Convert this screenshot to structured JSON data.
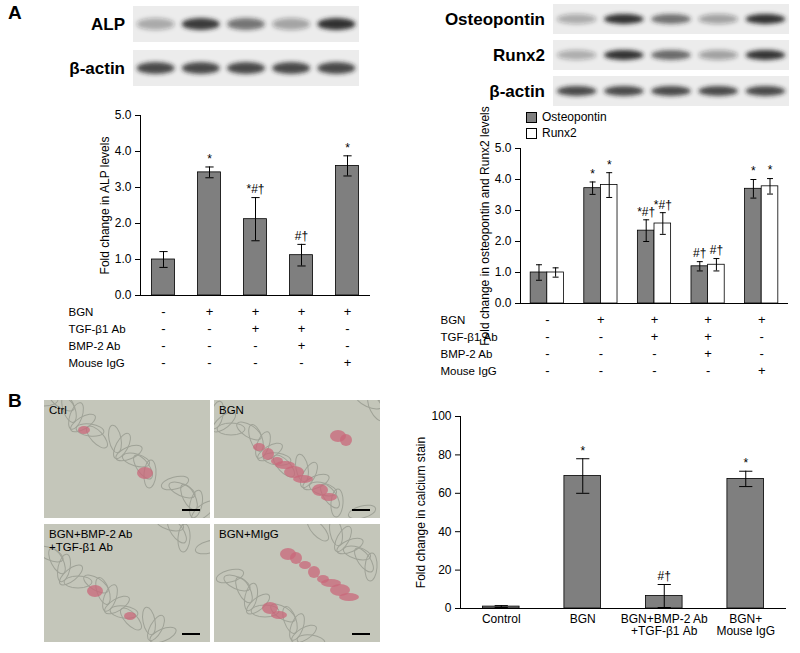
{
  "panel_labels": [
    "A",
    "B"
  ],
  "blots": [
    {
      "labels": [
        "ALP",
        "β-actin"
      ]
    },
    {
      "labels": [
        "Osteopontin",
        "Runx2",
        "β-actin"
      ]
    }
  ],
  "micrographs": {
    "labels": [
      "Ctrl",
      "BGN",
      "BGN+BMP-2 Ab\n+TGF-β1 Ab",
      "BGN+MIgG"
    ]
  },
  "chart_data": [
    {
      "type": "bar",
      "categories": [
        null,
        null,
        null,
        null,
        null
      ],
      "values": [
        1,
        3.42,
        2.12,
        1.12,
        3.6
      ],
      "errors": [
        0.22,
        0.15,
        0.6,
        0.3,
        0.28
      ],
      "annotations": [
        null,
        "*",
        "*#†",
        "#†",
        "*"
      ],
      "color": "#7f7f7f",
      "ylabel": "Fold change in ALP levels",
      "ylim": [
        0,
        5
      ],
      "yticks": [
        0,
        1,
        2,
        3,
        4,
        5
      ],
      "grid": false,
      "treatments": [
        {
          "name": "BGN",
          "signs": [
            "-",
            "+",
            "+",
            "+",
            "+"
          ]
        },
        {
          "name": "TGF-β1 Ab",
          "signs": [
            "-",
            "-",
            "+",
            "+",
            "-"
          ]
        },
        {
          "name": "BMP-2 Ab",
          "signs": [
            "-",
            "-",
            "-",
            "+",
            "-"
          ]
        },
        {
          "name": "Mouse IgG",
          "signs": [
            "-",
            "-",
            "-",
            "-",
            "+"
          ]
        }
      ]
    },
    {
      "type": "bar",
      "categories": [
        null,
        null,
        null,
        null,
        null
      ],
      "series": [
        {
          "name": "Osteopontin",
          "color": "#7f7f7f",
          "values": [
            1,
            3.72,
            2.35,
            1.2,
            3.7
          ],
          "errors": [
            0.25,
            0.2,
            0.35,
            0.15,
            0.3
          ],
          "annotations": [
            null,
            "*",
            "*#†",
            "#†",
            "*"
          ]
        },
        {
          "name": "Runx2",
          "color": "#ffffff",
          "values": [
            1,
            3.82,
            2.58,
            1.25,
            3.78
          ],
          "errors": [
            0.15,
            0.4,
            0.35,
            0.2,
            0.25
          ],
          "annotations": [
            null,
            "*",
            "*#†",
            "#†",
            "*"
          ]
        }
      ],
      "legend": "top-left",
      "ylabel": "Fold change in osteopontin and Runx2 levels",
      "ylim": [
        0,
        5
      ],
      "yticks": [
        0,
        1,
        2,
        3,
        4,
        5
      ],
      "grid": false,
      "treatments": [
        {
          "name": "BGN",
          "signs": [
            "-",
            "+",
            "+",
            "+",
            "+"
          ]
        },
        {
          "name": "TGF-β1 Ab",
          "signs": [
            "-",
            "-",
            "+",
            "+",
            "-"
          ]
        },
        {
          "name": "BMP-2 Ab",
          "signs": [
            "-",
            "-",
            "-",
            "+",
            "-"
          ]
        },
        {
          "name": "Mouse IgG",
          "signs": [
            "-",
            "-",
            "-",
            "-",
            "+"
          ]
        }
      ]
    },
    {
      "type": "bar",
      "categories": [
        "Control",
        "BGN",
        "BGN+BMP-2 Ab\n+TGF-β1 Ab",
        "BGN+\nMouse IgG"
      ],
      "values": [
        1,
        69,
        6.5,
        67.5
      ],
      "errors": [
        0.5,
        9,
        6,
        4
      ],
      "annotations": [
        null,
        "*",
        "#†",
        "*"
      ],
      "color": "#7f7f7f",
      "ylabel": "Fold change in calcium stain",
      "ylim": [
        0,
        100
      ],
      "yticks": [
        0,
        20,
        40,
        60,
        80,
        100
      ],
      "grid": false
    }
  ]
}
